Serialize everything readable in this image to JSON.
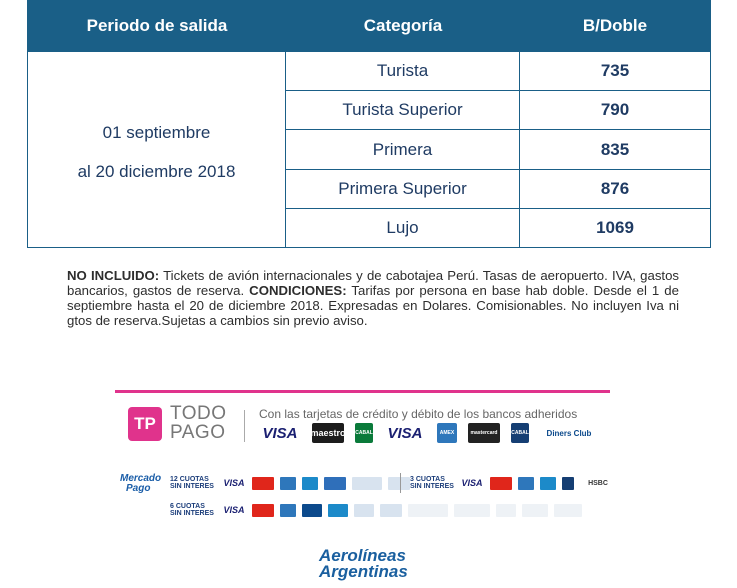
{
  "table": {
    "headers": [
      "Periodo de salida",
      "Categoría",
      "B/Doble"
    ],
    "period_line1": "01 septiembre",
    "period_line2": "al 20 diciembre 2018",
    "rows": [
      {
        "category": "Turista",
        "price": "735"
      },
      {
        "category": "Turista Superior",
        "price": "790"
      },
      {
        "category": "Primera",
        "price": "835"
      },
      {
        "category": "Primera Superior",
        "price": "876"
      },
      {
        "category": "Lujo",
        "price": "1069"
      }
    ]
  },
  "notes": {
    "no_incluido_label": "NO INCLUIDO:",
    "no_incluido_text": " Tickets de avión internacionales y de cabotajea Perú.  Tasas de aeropuerto. IVA, gastos bancarios, gastos de reserva. ",
    "condiciones_label": "CONDICIONES:",
    "condiciones_text": " Tarifas por persona en base hab doble. Desde el 1 de septiembre hasta el 20 de diciembre 2018. Expresadas en Dolares. Comisionables. No incluyen Iva ni gtos de reserva.Sujetas a cambios sin previo aviso."
  },
  "todopago": {
    "logo_mark": "TP",
    "line1": "TODO",
    "line2": "PAGO",
    "description": "Con las tarjetas de crédito y débito de los bancos adheridos",
    "cards": [
      "VISA",
      "maestro",
      "CABAL",
      "VISA",
      "AMEX",
      "mastercard",
      "CABAL",
      "Diners Club"
    ]
  },
  "mercadopago": {
    "logo_line1": "Mercado",
    "logo_line2": "Pago",
    "cuotas12_label": "12 CUOTAS SIN INTERES",
    "cuotas3_label": "3 CUOTAS SIN INTERES",
    "cuotas6_label": "6 CUOTAS SIN INTERES",
    "hsbc": "HSBC"
  },
  "airline": {
    "line1": "Aerolíneas",
    "line2": "Argentinas"
  },
  "colors": {
    "header_blue": "#1a5f87",
    "accent_pink": "#e0338c"
  }
}
